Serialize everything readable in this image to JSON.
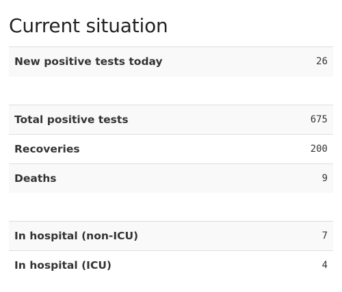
{
  "title": "Current situation",
  "tables": [
    {
      "rows": [
        {
          "label": "New positive tests today",
          "value": "26"
        }
      ]
    },
    {
      "rows": [
        {
          "label": "Total positive tests",
          "value": "675"
        },
        {
          "label": "Recoveries",
          "value": "200"
        },
        {
          "label": "Deaths",
          "value": "9"
        }
      ]
    },
    {
      "rows": [
        {
          "label": "In hospital (non-ICU)",
          "value": "7"
        },
        {
          "label": "In hospital (ICU)",
          "value": "4"
        }
      ]
    }
  ]
}
